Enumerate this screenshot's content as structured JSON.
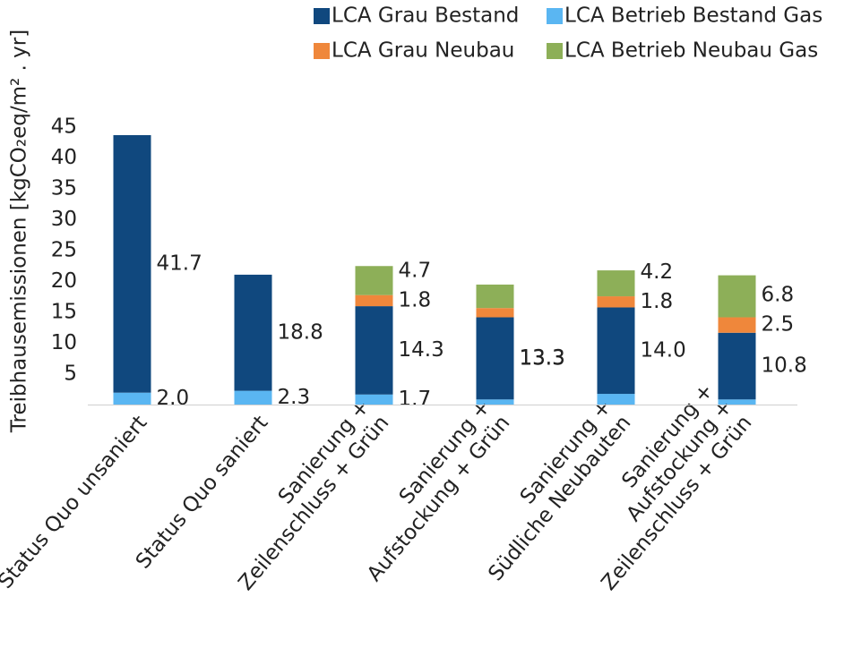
{
  "chart_data": {
    "type": "stacked_bar",
    "y_axis_label": "Treibhausemissionen [kgCO₂eq/m² . yr]",
    "categories": [
      "Status Quo unsaniert",
      "Status Quo saniert",
      "Sanierung +\nZeilenschluss + Grün",
      "Sanierung +\nAufstockung + Grün",
      "Sanierung +\nSüdliche Neubauten",
      "Sanierung +\nAufstockung +\nZeilenschluss + Grün"
    ],
    "series": [
      {
        "name": "LCA Betrieb Bestand Gas",
        "color": "#5ab6f2",
        "values": [
          2.0,
          2.3,
          1.7,
          0.9,
          1.8,
          0.9
        ],
        "value_labels": [
          "2.0",
          "2.3",
          "1.7",
          null,
          null,
          null
        ]
      },
      {
        "name": "LCA Grau Bestand",
        "color": "#10487e",
        "values": [
          41.7,
          18.8,
          14.3,
          13.3,
          14.0,
          10.8
        ],
        "value_labels": [
          "41.7",
          "18.8",
          "14.3",
          "13.3",
          "14.0",
          "10.8"
        ]
      },
      {
        "name": "LCA Grau Neubau",
        "color": "#ef873b",
        "values": [
          0,
          0,
          1.8,
          1.5,
          1.8,
          2.5
        ],
        "value_labels": [
          null,
          null,
          "1.8",
          null,
          "1.8",
          "2.5"
        ]
      },
      {
        "name": "LCA Betrieb Neubau Gas",
        "color": "#8daf58",
        "values": [
          0,
          0,
          4.7,
          3.8,
          4.2,
          6.8
        ],
        "value_labels": [
          null,
          null,
          "4.7",
          null,
          "4.2",
          "6.8"
        ]
      }
    ],
    "annotations": [
      {
        "category": 3,
        "text": "13.3"
      }
    ],
    "ylim": [
      0,
      45
    ],
    "yticks": [
      5,
      10,
      15,
      20,
      25,
      30,
      35,
      40,
      45
    ],
    "grid": false
  }
}
